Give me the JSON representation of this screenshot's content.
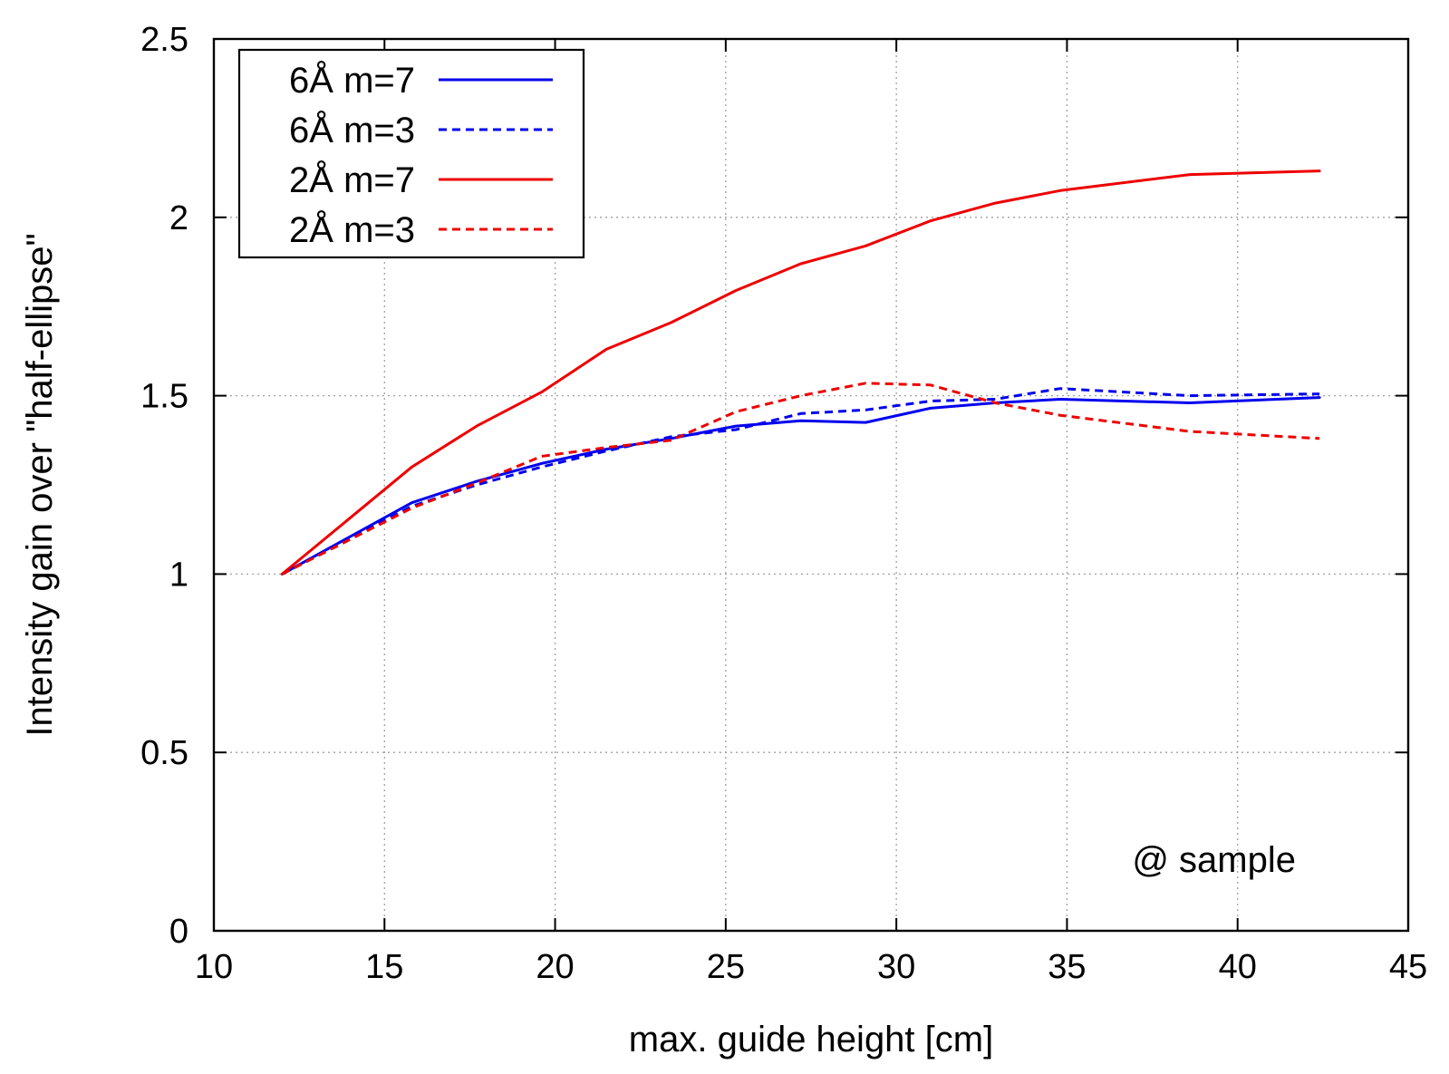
{
  "chart_data": {
    "type": "line",
    "title": "",
    "xlabel": "max. guide height [cm]",
    "ylabel": "Intensity gain over \"half-ellipse\"",
    "xlim": [
      10,
      45
    ],
    "ylim": [
      0,
      2.5
    ],
    "xticks": [
      10,
      15,
      20,
      25,
      30,
      35,
      40,
      45
    ],
    "yticks": [
      0,
      0.5,
      1,
      1.5,
      2,
      2.5
    ],
    "xtick_labels": [
      "10",
      "15",
      "20",
      "25",
      "30",
      "35",
      "40",
      "45"
    ],
    "ytick_labels": [
      "0",
      "0.5",
      "1",
      "1.5",
      "2",
      "2.5"
    ],
    "grid": true,
    "legend_position": "top-left",
    "annotation": "@ sample",
    "series": [
      {
        "name": "6Å m=7",
        "color": "#0000ee",
        "dash": "solid",
        "x": [
          12.0,
          15.8,
          17.7,
          19.6,
          21.5,
          23.4,
          25.3,
          27.2,
          29.1,
          31.0,
          32.9,
          34.8,
          38.6,
          42.4
        ],
        "y": [
          1.0,
          1.2,
          1.26,
          1.31,
          1.35,
          1.38,
          1.415,
          1.43,
          1.425,
          1.465,
          1.48,
          1.49,
          1.48,
          1.495
        ]
      },
      {
        "name": "6Å m=3",
        "color": "#0000ee",
        "dash": "dashed",
        "x": [
          12.0,
          15.8,
          17.7,
          19.6,
          21.5,
          23.4,
          25.3,
          27.2,
          29.1,
          31.0,
          32.9,
          34.8,
          38.6,
          42.4
        ],
        "y": [
          1.0,
          1.19,
          1.25,
          1.3,
          1.345,
          1.385,
          1.405,
          1.45,
          1.46,
          1.485,
          1.49,
          1.52,
          1.5,
          1.505
        ]
      },
      {
        "name": "2Å m=7",
        "color": "#ee0000",
        "dash": "solid",
        "x": [
          12.0,
          15.8,
          17.7,
          19.6,
          21.5,
          23.4,
          25.3,
          27.2,
          29.1,
          31.0,
          32.9,
          34.8,
          38.6,
          42.4
        ],
        "y": [
          1.0,
          1.3,
          1.415,
          1.51,
          1.63,
          1.705,
          1.795,
          1.87,
          1.92,
          1.99,
          2.04,
          2.075,
          2.12,
          2.13
        ]
      },
      {
        "name": "2Å m=3",
        "color": "#ee0000",
        "dash": "dashed",
        "x": [
          12.0,
          15.8,
          17.7,
          19.6,
          21.5,
          23.4,
          25.3,
          27.2,
          29.1,
          31.0,
          32.9,
          34.8,
          38.6,
          42.4
        ],
        "y": [
          1.0,
          1.185,
          1.255,
          1.33,
          1.355,
          1.375,
          1.455,
          1.5,
          1.535,
          1.53,
          1.48,
          1.445,
          1.4,
          1.38
        ]
      }
    ]
  }
}
